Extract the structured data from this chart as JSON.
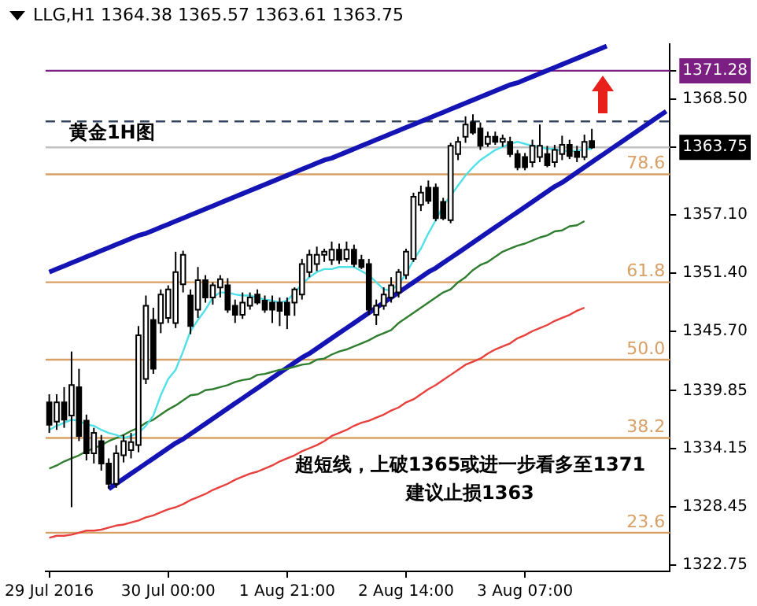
{
  "chart_data": {
    "type": "candlestick",
    "title": "LLG,H1  1364.38 1365.57 1363.61 1363.75",
    "categories": [
      "29 Jul 2016",
      null,
      null,
      null,
      null,
      null,
      null,
      null,
      null,
      null,
      null,
      null,
      null,
      null,
      null,
      null,
      "30 Jul 00:00",
      null,
      null,
      null,
      null,
      null,
      null,
      null,
      null,
      null,
      null,
      null,
      null,
      null,
      null,
      null,
      "1 Aug 21:00",
      null,
      null,
      null,
      null,
      null,
      null,
      null,
      null,
      null,
      null,
      null,
      null,
      null,
      null,
      null,
      "2 Aug 14:00",
      null,
      null,
      null,
      null,
      null,
      null,
      null,
      null,
      null,
      null,
      null,
      null,
      null,
      null,
      null,
      "3 Aug 07:00",
      null,
      null,
      null,
      null,
      null,
      null,
      null,
      null,
      null,
      null,
      null,
      null,
      null,
      null,
      null,
      null,
      null,
      null,
      null
    ],
    "ohlc": [
      [
        1338.7,
        1339.5,
        1335.7,
        1336.5
      ],
      [
        1336.8,
        1339.5,
        1336.0,
        1338.7
      ],
      [
        1338.7,
        1340.2,
        1336.2,
        1337.0
      ],
      [
        1337.4,
        1343.7,
        1328.4,
        1340.4
      ],
      [
        1340.2,
        1342.0,
        1334.9,
        1335.4
      ],
      [
        1336.9,
        1337.5,
        1333.0,
        1333.7
      ],
      [
        1333.7,
        1336.2,
        1332.7,
        1335.7
      ],
      [
        1334.9,
        1335.5,
        1332.0,
        1332.7
      ],
      [
        1332.7,
        1333.2,
        1330.2,
        1330.7
      ],
      [
        1330.7,
        1334.5,
        1330.3,
        1333.7
      ],
      [
        1333.5,
        1335.5,
        1332.8,
        1334.9
      ],
      [
        1334.0,
        1335.7,
        1333.2,
        1334.8
      ],
      [
        1334.5,
        1346.2,
        1333.8,
        1345.3
      ],
      [
        1341.0,
        1349.2,
        1340.5,
        1348.2
      ],
      [
        1346.8,
        1348.0,
        1341.5,
        1342.0
      ],
      [
        1346.5,
        1349.8,
        1345.5,
        1349.3
      ],
      [
        1347.0,
        1350.2,
        1346.5,
        1349.8
      ],
      [
        1346.5,
        1353.5,
        1346.0,
        1351.5
      ],
      [
        1350.3,
        1353.6,
        1349.5,
        1353.2
      ],
      [
        1349.2,
        1349.8,
        1345.4,
        1346.2
      ],
      [
        1347.8,
        1352.0,
        1347.0,
        1350.7
      ],
      [
        1350.7,
        1351.2,
        1348.5,
        1349.0
      ],
      [
        1349.0,
        1350.5,
        1348.3,
        1350.2
      ],
      [
        1350.0,
        1351.2,
        1349.0,
        1350.8
      ],
      [
        1350.2,
        1350.9,
        1347.5,
        1347.8
      ],
      [
        1348.2,
        1348.8,
        1346.5,
        1347.3
      ],
      [
        1347.3,
        1349.5,
        1346.9,
        1348.5
      ],
      [
        1348.2,
        1349.5,
        1347.8,
        1349.0
      ],
      [
        1349.3,
        1349.8,
        1348.3,
        1348.5
      ],
      [
        1348.7,
        1349.2,
        1347.5,
        1347.8
      ],
      [
        1348.5,
        1349.2,
        1346.5,
        1347.8
      ],
      [
        1348.5,
        1349.0,
        1346.2,
        1347.7
      ],
      [
        1348.5,
        1349.0,
        1345.9,
        1347.3
      ],
      [
        1348.5,
        1350.0,
        1347.2,
        1349.8
      ],
      [
        1349.3,
        1352.8,
        1348.8,
        1352.3
      ],
      [
        1351.5,
        1353.7,
        1351.0,
        1353.2
      ],
      [
        1352.3,
        1354.0,
        1351.6,
        1353.2
      ],
      [
        1353.2,
        1353.8,
        1352.5,
        1353.5
      ],
      [
        1352.7,
        1354.5,
        1352.2,
        1353.7
      ],
      [
        1353.7,
        1354.3,
        1352.3,
        1352.7
      ],
      [
        1352.8,
        1354.5,
        1352.5,
        1353.7
      ],
      [
        1353.7,
        1354.2,
        1352.0,
        1352.3
      ],
      [
        1352.7,
        1353.2,
        1351.8,
        1352.0
      ],
      [
        1352.3,
        1352.8,
        1347.3,
        1347.8
      ],
      [
        1347.3,
        1348.8,
        1346.3,
        1348.2
      ],
      [
        1348.2,
        1350.0,
        1347.8,
        1349.3
      ],
      [
        1349.0,
        1351.0,
        1348.5,
        1350.2
      ],
      [
        1349.5,
        1351.8,
        1349.0,
        1351.5
      ],
      [
        1351.2,
        1353.8,
        1350.8,
        1353.5
      ],
      [
        1352.8,
        1359.3,
        1352.5,
        1358.9
      ],
      [
        1358.1,
        1360.0,
        1357.5,
        1359.3
      ],
      [
        1359.8,
        1360.5,
        1358.2,
        1358.5
      ],
      [
        1359.8,
        1360.2,
        1356.5,
        1356.8
      ],
      [
        1358.4,
        1358.8,
        1356.6,
        1356.8
      ],
      [
        1356.6,
        1364.2,
        1356.3,
        1363.9
      ],
      [
        1363.1,
        1364.8,
        1362.5,
        1364.3
      ],
      [
        1364.8,
        1366.8,
        1364.2,
        1366.0
      ],
      [
        1366.2,
        1367.0,
        1365.0,
        1365.2
      ],
      [
        1365.6,
        1366.2,
        1363.5,
        1363.9
      ],
      [
        1364.1,
        1365.3,
        1363.8,
        1364.8
      ],
      [
        1364.8,
        1365.3,
        1364.0,
        1364.3
      ],
      [
        1364.3,
        1365.0,
        1363.8,
        1364.6
      ],
      [
        1364.3,
        1364.8,
        1362.8,
        1363.1
      ],
      [
        1363.1,
        1363.5,
        1361.5,
        1361.8
      ],
      [
        1362.8,
        1363.2,
        1361.5,
        1361.8
      ],
      [
        1362.3,
        1364.5,
        1361.8,
        1363.9
      ],
      [
        1362.8,
        1366.0,
        1362.3,
        1363.9
      ],
      [
        1363.1,
        1363.9,
        1361.8,
        1362.0
      ],
      [
        1362.3,
        1364.0,
        1361.8,
        1363.5
      ],
      [
        1363.1,
        1364.9,
        1362.5,
        1364.0
      ],
      [
        1364.0,
        1364.5,
        1362.6,
        1362.9
      ],
      [
        1363.3,
        1363.9,
        1362.3,
        1362.8
      ],
      [
        1362.8,
        1365.0,
        1362.5,
        1364.3
      ],
      [
        1364.38,
        1365.57,
        1363.61,
        1363.75
      ],
      null,
      null,
      null,
      null,
      null,
      null,
      null,
      null,
      null,
      null
    ],
    "series": [
      {
        "type": "line",
        "color": "#4fe0e8",
        "values": [
          1336.0,
          1336.4,
          1336.7,
          1337.0,
          1336.9,
          1336.5,
          1336.4,
          1336.0,
          1335.7,
          1335.5,
          1335.2,
          1335.4,
          1335.7,
          1336.4,
          1337.4,
          1339.4,
          1341.0,
          1341.9,
          1343.7,
          1345.7,
          1346.8,
          1347.8,
          1349.0,
          1349.5,
          1349.5,
          1349.3,
          1349.2,
          1349.2,
          1349.0,
          1348.8,
          1348.7,
          1348.5,
          1348.7,
          1349.5,
          1350.3,
          1351.0,
          1351.5,
          1351.8,
          1351.8,
          1352.0,
          1352.0,
          1352.0,
          1351.6,
          1351.2,
          1350.5,
          1349.8,
          1349.7,
          1350.3,
          1351.3,
          1352.7,
          1353.8,
          1355.3,
          1356.6,
          1358.0,
          1359.0,
          1360.0,
          1361.0,
          1361.8,
          1362.5,
          1363.0,
          1363.5,
          1363.8,
          1364.1,
          1364.3,
          1364.1,
          1363.9,
          1363.8,
          1363.6,
          1363.6,
          1363.4,
          1363.4,
          1363.4,
          1363.6,
          1363.6,
          null,
          null,
          null,
          null,
          null,
          null,
          null,
          null,
          null,
          null
        ]
      },
      {
        "type": "line",
        "color": "#2f7d2f",
        "values": [
          1332.2,
          1332.5,
          1332.9,
          1333.2,
          1333.5,
          1333.9,
          1334.2,
          1334.5,
          1334.9,
          1335.2,
          1335.5,
          1335.9,
          1336.2,
          1336.7,
          1337.0,
          1337.5,
          1338.0,
          1338.4,
          1338.9,
          1339.4,
          1339.5,
          1339.9,
          1340.0,
          1340.2,
          1340.4,
          1340.7,
          1340.9,
          1341.0,
          1341.4,
          1341.5,
          1341.7,
          1341.9,
          1342.0,
          1342.2,
          1342.4,
          1342.5,
          1342.9,
          1343.0,
          1343.4,
          1343.7,
          1343.9,
          1344.2,
          1344.5,
          1344.8,
          1345.2,
          1345.5,
          1345.8,
          1346.5,
          1347.0,
          1347.5,
          1348.0,
          1348.5,
          1349.0,
          1349.5,
          1349.8,
          1350.5,
          1351.0,
          1351.7,
          1352.2,
          1352.5,
          1353.0,
          1353.5,
          1353.8,
          1354.1,
          1354.3,
          1354.6,
          1354.9,
          1355.1,
          1355.5,
          1355.6,
          1356.0,
          1356.1,
          1356.5,
          null,
          null,
          null,
          null,
          null,
          null,
          null,
          null,
          null,
          null,
          null
        ]
      },
      {
        "type": "line",
        "color": "#e8403c",
        "values": [
          1325.4,
          1325.6,
          1325.6,
          1325.7,
          1325.9,
          1326.1,
          1326.1,
          1326.2,
          1326.4,
          1326.6,
          1326.7,
          1326.9,
          1327.1,
          1327.4,
          1327.6,
          1327.9,
          1328.2,
          1328.4,
          1328.7,
          1329.1,
          1329.4,
          1329.7,
          1330.1,
          1330.4,
          1330.7,
          1331.1,
          1331.4,
          1331.7,
          1331.9,
          1332.2,
          1332.5,
          1332.9,
          1333.2,
          1333.5,
          1333.9,
          1334.2,
          1334.5,
          1334.9,
          1335.4,
          1335.7,
          1336.0,
          1336.4,
          1336.7,
          1336.9,
          1337.2,
          1337.5,
          1337.9,
          1338.2,
          1338.7,
          1339.0,
          1339.5,
          1340.0,
          1340.4,
          1340.9,
          1341.4,
          1341.9,
          1342.4,
          1342.7,
          1343.0,
          1343.5,
          1343.9,
          1344.2,
          1344.5,
          1345.0,
          1345.3,
          1345.7,
          1346.0,
          1346.3,
          1346.7,
          1347.0,
          1347.3,
          1347.7,
          1348.0,
          null,
          null,
          null,
          null,
          null,
          null,
          null,
          null,
          null,
          null,
          null
        ]
      },
      {
        "type": "line",
        "color": "#1414b4",
        "values": [
          1351.5,
          1351.8,
          1352.1,
          1352.4,
          1352.7,
          1353.0,
          1353.3,
          1353.6,
          1353.9,
          1354.2,
          1354.5,
          1354.8,
          1355.1,
          1355.3,
          1355.6,
          1355.9,
          1356.2,
          1356.5,
          1356.8,
          1357.1,
          1357.4,
          1357.7,
          1358.0,
          1358.3,
          1358.6,
          1358.9,
          1359.2,
          1359.5,
          1359.8,
          1360.1,
          1360.4,
          1360.7,
          1361.0,
          1361.3,
          1361.6,
          1361.9,
          1362.2,
          1362.5,
          1362.7,
          1363.0,
          1363.3,
          1363.6,
          1363.9,
          1364.2,
          1364.5,
          1364.8,
          1365.1,
          1365.4,
          1365.7,
          1366.0,
          1366.3,
          1366.6,
          1366.9,
          1367.2,
          1367.5,
          1367.8,
          1368.1,
          1368.4,
          1368.7,
          1369.0,
          1369.3,
          1369.6,
          1369.9,
          1370.1,
          1370.4,
          1370.7,
          1371.0,
          1371.3,
          1371.6,
          1371.9,
          1372.2,
          1372.5,
          1372.8,
          1373.1,
          1373.4,
          1373.7,
          null,
          null,
          null,
          null,
          null,
          null,
          null,
          null
        ]
      },
      {
        "type": "line",
        "color": "#1414b4",
        "values": [
          null,
          null,
          null,
          null,
          null,
          null,
          null,
          null,
          1330.2,
          1330.7,
          1331.2,
          1331.7,
          1332.2,
          1332.7,
          1333.2,
          1333.7,
          1334.2,
          1334.7,
          1335.1,
          1335.6,
          1336.1,
          1336.6,
          1337.1,
          1337.6,
          1338.1,
          1338.6,
          1339.1,
          1339.6,
          1340.1,
          1340.6,
          1341.1,
          1341.6,
          1342.1,
          1342.6,
          1343.1,
          1343.5,
          1344.0,
          1344.5,
          1345.0,
          1345.5,
          1346.0,
          1346.5,
          1347.0,
          1347.5,
          1348.0,
          1348.5,
          1349.0,
          1349.5,
          1350.0,
          1350.5,
          1351.0,
          1351.5,
          1351.9,
          1352.4,
          1352.9,
          1353.4,
          1353.9,
          1354.4,
          1354.9,
          1355.4,
          1355.9,
          1356.4,
          1356.9,
          1357.4,
          1357.9,
          1358.4,
          1358.9,
          1359.4,
          1359.9,
          1360.3,
          1360.8,
          1361.3,
          1361.8,
          1362.3,
          1362.8,
          1363.3,
          1363.8,
          1364.3,
          1364.8,
          1365.3,
          1365.8,
          1366.3,
          1366.8,
          1367.3
        ]
      }
    ],
    "ylim": [
      1322.1,
      1373.9
    ],
    "yticks": [
      {
        "value": 1322.75,
        "label": "1322.75"
      },
      {
        "value": 1328.45,
        "label": "1328.45"
      },
      {
        "value": 1334.15,
        "label": "1334.15"
      },
      {
        "value": 1339.85,
        "label": "1339.85"
      },
      {
        "value": 1345.7,
        "label": "1345.70"
      },
      {
        "value": 1351.4,
        "label": "1351.40"
      },
      {
        "value": 1357.1,
        "label": "1357.10"
      },
      {
        "value": 1363.75,
        "label": "1363.75"
      },
      {
        "value": 1368.5,
        "label": "1368.50"
      },
      {
        "value": 1371.28,
        "label": "1371.28"
      }
    ],
    "ref_lines": [
      {
        "axis": "y",
        "value": 1371.28,
        "color": "#7b1f82"
      },
      {
        "axis": "y",
        "value": 1363.75,
        "color": "#c0c0c0"
      },
      {
        "axis": "y",
        "value": 1366.3,
        "color": "#34445e",
        "line_style": "dashed"
      },
      {
        "axis": "y",
        "value": 1361.1,
        "color": "#d9a066"
      },
      {
        "axis": "y",
        "value": 1350.5,
        "color": "#d9a066"
      },
      {
        "axis": "y",
        "value": 1342.9,
        "color": "#d9a066"
      },
      {
        "axis": "y",
        "value": 1335.2,
        "color": "#d9a066"
      },
      {
        "axis": "y",
        "value": 1325.9,
        "color": "#d9a066"
      }
    ],
    "annotations": [
      "黄金1H图",
      "超短线，上破1365或进一步看多至1371",
      "建议止损1363",
      {
        "text": "78.6",
        "y": 1361.1
      },
      {
        "text": "61.8",
        "y": 1350.5
      },
      {
        "text": "50.0",
        "y": 1342.9
      },
      {
        "text": "38.2",
        "y": 1335.2
      },
      {
        "text": "23.6",
        "y": 1325.9
      }
    ],
    "marker": "none",
    "grid": false,
    "legend": false
  }
}
